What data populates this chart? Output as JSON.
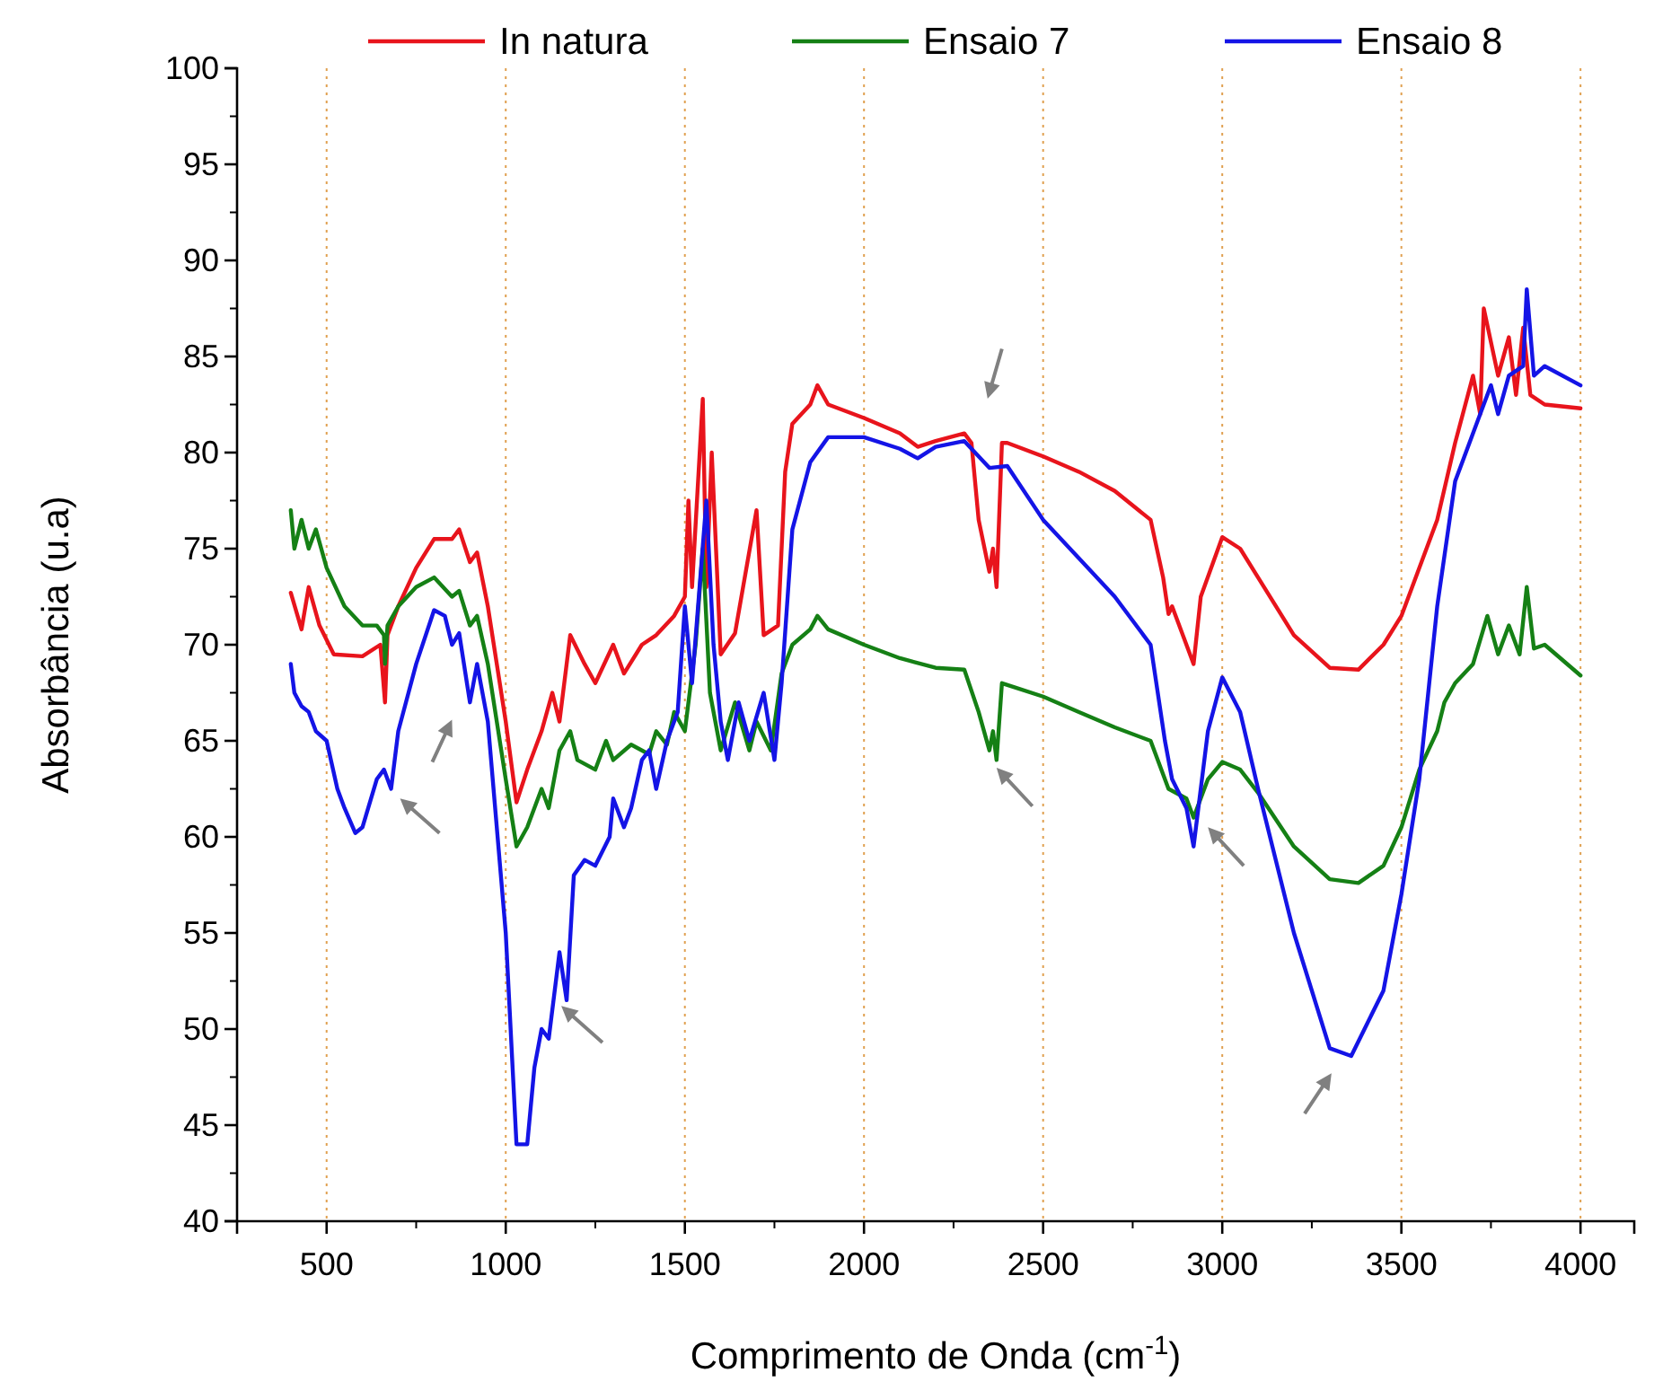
{
  "chart_data": {
    "type": "line",
    "xlabel": "Comprimento de Onda (cm$^{-1}$)",
    "ylabel": "Absorbância (u.a)",
    "xlim": [
      250,
      4150
    ],
    "ylim": [
      40,
      100
    ],
    "xticks": [
      500,
      1000,
      1500,
      2000,
      2500,
      3000,
      3500,
      4000
    ],
    "yticks": [
      40,
      45,
      50,
      55,
      60,
      65,
      70,
      75,
      80,
      85,
      90,
      95,
      100
    ],
    "grid": "x",
    "legend": "top",
    "line_style": "solid",
    "marker": "none",
    "series": [
      {
        "name": "In natura",
        "color": "#e8141c",
        "x": [
          400,
          430,
          450,
          480,
          520,
          600,
          650,
          663,
          670,
          700,
          750,
          800,
          850,
          870,
          900,
          920,
          950,
          1000,
          1030,
          1060,
          1100,
          1130,
          1150,
          1180,
          1220,
          1250,
          1300,
          1330,
          1380,
          1420,
          1470,
          1500,
          1510,
          1520,
          1550,
          1560,
          1575,
          1600,
          1640,
          1700,
          1720,
          1760,
          1780,
          1800,
          1850,
          1870,
          1900,
          2000,
          2100,
          2150,
          2200,
          2280,
          2300,
          2320,
          2350,
          2360,
          2370,
          2385,
          2400,
          2500,
          2600,
          2700,
          2800,
          2835,
          2850,
          2860,
          2900,
          2920,
          2940,
          3000,
          3050,
          3100,
          3200,
          3300,
          3380,
          3450,
          3500,
          3550,
          3600,
          3650,
          3700,
          3720,
          3730,
          3770,
          3800,
          3820,
          3840,
          3860,
          3900,
          4000
        ],
        "values": [
          72.7,
          70.8,
          73.0,
          71.0,
          69.5,
          69.4,
          70.0,
          67.0,
          70.5,
          72.0,
          74.0,
          75.5,
          75.5,
          76.0,
          74.3,
          74.8,
          72.0,
          66.0,
          61.8,
          63.5,
          65.5,
          67.5,
          66.0,
          70.5,
          69.0,
          68.0,
          70.0,
          68.5,
          70.0,
          70.5,
          71.5,
          72.5,
          77.5,
          73.0,
          82.8,
          73.0,
          80.0,
          69.5,
          70.6,
          77.0,
          70.5,
          71.0,
          79.0,
          81.5,
          82.5,
          83.5,
          82.5,
          81.8,
          81.0,
          80.3,
          80.6,
          81.0,
          80.5,
          76.5,
          73.8,
          75.0,
          73.0,
          80.5,
          80.5,
          79.8,
          79.0,
          78.0,
          76.5,
          73.5,
          71.6,
          72.0,
          70.0,
          69.0,
          72.5,
          75.6,
          75.0,
          73.5,
          70.5,
          68.8,
          68.7,
          70.0,
          71.5,
          74.0,
          76.5,
          80.5,
          84.0,
          82.0,
          87.5,
          84.0,
          86.0,
          83.0,
          86.5,
          83.0,
          82.5,
          82.3
        ]
      },
      {
        "name": "Ensaio 7",
        "color": "#158015",
        "x": [
          400,
          410,
          430,
          450,
          470,
          500,
          550,
          600,
          640,
          660,
          663,
          670,
          700,
          750,
          800,
          850,
          870,
          900,
          920,
          950,
          1000,
          1030,
          1060,
          1100,
          1120,
          1150,
          1180,
          1200,
          1250,
          1280,
          1300,
          1350,
          1400,
          1420,
          1450,
          1470,
          1500,
          1530,
          1550,
          1570,
          1600,
          1640,
          1680,
          1700,
          1740,
          1770,
          1800,
          1850,
          1870,
          1900,
          2000,
          2100,
          2200,
          2280,
          2320,
          2350,
          2360,
          2370,
          2385,
          2500,
          2600,
          2700,
          2800,
          2850,
          2900,
          2920,
          2960,
          3000,
          3050,
          3100,
          3200,
          3300,
          3380,
          3450,
          3500,
          3550,
          3600,
          3620,
          3650,
          3700,
          3740,
          3770,
          3800,
          3830,
          3850,
          3870,
          3900,
          4000
        ],
        "values": [
          77.0,
          75.0,
          76.5,
          75.0,
          76.0,
          74.0,
          72.0,
          71.0,
          71.0,
          70.5,
          69.0,
          71.0,
          72.0,
          73.0,
          73.5,
          72.5,
          72.8,
          71.0,
          71.5,
          69.0,
          63.0,
          59.5,
          60.5,
          62.5,
          61.5,
          64.5,
          65.5,
          64.0,
          63.5,
          65.0,
          64.0,
          64.8,
          64.3,
          65.5,
          64.8,
          66.5,
          65.5,
          70.0,
          75.0,
          67.5,
          64.5,
          67.0,
          64.5,
          66.0,
          64.5,
          68.5,
          70.0,
          70.8,
          71.5,
          70.8,
          70.0,
          69.3,
          68.8,
          68.7,
          66.5,
          64.5,
          65.5,
          64.0,
          68.0,
          67.3,
          66.5,
          65.7,
          65.0,
          62.5,
          62.0,
          61.0,
          63.0,
          63.9,
          63.5,
          62.3,
          59.5,
          57.8,
          57.6,
          58.5,
          60.5,
          63.5,
          65.5,
          67.0,
          68.0,
          69.0,
          71.5,
          69.5,
          71.0,
          69.5,
          73.0,
          69.8,
          70.0,
          68.4
        ]
      },
      {
        "name": "Ensaio 8",
        "color": "#1414e6",
        "x": [
          400,
          410,
          430,
          450,
          470,
          500,
          530,
          550,
          580,
          600,
          640,
          660,
          680,
          700,
          750,
          800,
          830,
          850,
          870,
          900,
          920,
          950,
          1000,
          1030,
          1060,
          1080,
          1100,
          1120,
          1150,
          1170,
          1190,
          1220,
          1250,
          1290,
          1300,
          1330,
          1350,
          1380,
          1400,
          1420,
          1450,
          1480,
          1500,
          1520,
          1560,
          1580,
          1600,
          1620,
          1650,
          1680,
          1720,
          1750,
          1770,
          1800,
          1850,
          1900,
          2000,
          2100,
          2150,
          2200,
          2280,
          2320,
          2350,
          2400,
          2500,
          2600,
          2700,
          2800,
          2840,
          2860,
          2900,
          2920,
          2960,
          3000,
          3050,
          3100,
          3200,
          3300,
          3360,
          3450,
          3500,
          3550,
          3600,
          3650,
          3700,
          3750,
          3770,
          3800,
          3840,
          3850,
          3870,
          3900,
          4000
        ],
        "values": [
          69.0,
          67.5,
          66.8,
          66.5,
          65.5,
          65.0,
          62.5,
          61.5,
          60.2,
          60.5,
          63.0,
          63.5,
          62.5,
          65.5,
          69.0,
          71.8,
          71.5,
          70.0,
          70.6,
          67.0,
          69.0,
          66.0,
          55.0,
          44.0,
          44.0,
          48.0,
          50.0,
          49.5,
          54.0,
          51.5,
          58.0,
          58.8,
          58.5,
          60.0,
          62.0,
          60.5,
          61.5,
          64.0,
          64.5,
          62.5,
          65.0,
          66.5,
          72.0,
          68.0,
          77.5,
          70.0,
          66.0,
          64.0,
          67.0,
          65.0,
          67.5,
          64.0,
          68.0,
          76.0,
          79.5,
          80.8,
          80.8,
          80.2,
          79.7,
          80.3,
          80.6,
          79.8,
          79.2,
          79.3,
          76.5,
          74.5,
          72.5,
          70.0,
          65.0,
          63.0,
          61.5,
          59.5,
          65.5,
          68.3,
          66.5,
          62.5,
          55.0,
          49.0,
          48.6,
          52.0,
          57.0,
          63.0,
          72.0,
          78.5,
          81.0,
          83.5,
          82.0,
          84.0,
          84.5,
          88.5,
          84.0,
          84.5,
          83.5
        ]
      }
    ]
  }
}
